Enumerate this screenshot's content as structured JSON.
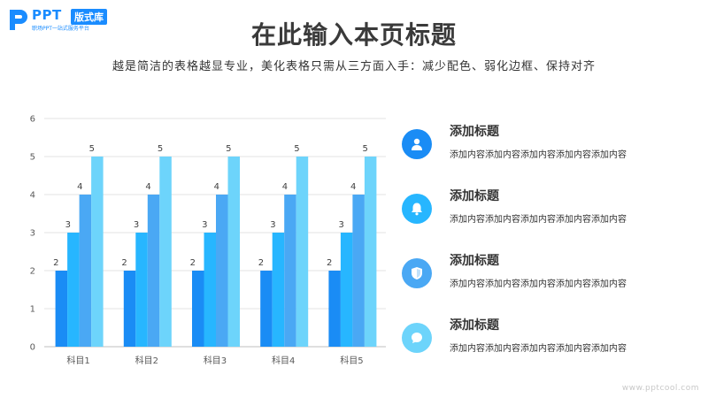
{
  "logo": {
    "text": "PPT",
    "badge": "版式库",
    "tagline": "职场PPT一站式服务平台",
    "color": "#1a8cff"
  },
  "header": {
    "title": "在此输入本页标题",
    "subtitle": "越是简洁的表格越显专业，美化表格只需从三方面入手：减少配色、弱化边框、保持对齐"
  },
  "chart_data": {
    "type": "bar",
    "categories": [
      "科目1",
      "科目2",
      "科目3",
      "科目4",
      "科目5"
    ],
    "series": [
      {
        "values": [
          2,
          2,
          2,
          2,
          2
        ],
        "color": "#1a8cf5"
      },
      {
        "values": [
          3,
          3,
          3,
          3,
          3
        ],
        "color": "#27b6ff"
      },
      {
        "values": [
          4,
          4,
          4,
          4,
          4
        ],
        "color": "#4aa8f4"
      },
      {
        "values": [
          5,
          5,
          5,
          5,
          5
        ],
        "color": "#6dd4fb"
      }
    ],
    "ylim": [
      0,
      6
    ],
    "yticks": [
      0,
      1,
      2,
      3,
      4,
      5,
      6
    ],
    "grid": true,
    "data_labels": true,
    "legend": "none"
  },
  "items": [
    {
      "title": "添加标题",
      "desc": "添加内容添加内容添加内容添加内容添加内容",
      "icon": "user-icon",
      "color": "#1a8cf5"
    },
    {
      "title": "添加标题",
      "desc": "添加内容添加内容添加内容添加内容添加内容",
      "icon": "bell-icon",
      "color": "#27b6ff"
    },
    {
      "title": "添加标题",
      "desc": "添加内容添加内容添加内容添加内容添加内容",
      "icon": "shield-icon",
      "color": "#4aa8f4"
    },
    {
      "title": "添加标题",
      "desc": "添加内容添加内容添加内容添加内容添加内容",
      "icon": "chat-icon",
      "color": "#6dd4fb"
    }
  ],
  "watermark": "www.pptcool.com"
}
